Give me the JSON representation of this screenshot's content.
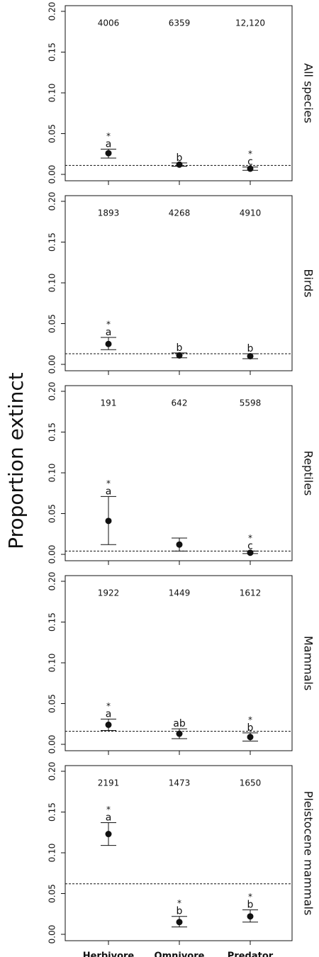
{
  "ylabel": "Proportion extinct",
  "chart_data": [
    {
      "type": "errorbar",
      "title": "All species",
      "ylim": [
        0,
        0.2
      ],
      "yticks": [
        {
          "value": 0,
          "label": "0.00"
        },
        {
          "value": 0.05,
          "label": "0.05"
        },
        {
          "value": 0.1,
          "label": "0.10"
        },
        {
          "value": 0.15,
          "label": "0.15"
        },
        {
          "value": 0.2,
          "label": "0.20"
        }
      ],
      "values": [
        0.026,
        0.012,
        0.007
      ],
      "error_low": [
        0.02,
        0.01,
        0.005
      ],
      "error_high": [
        0.031,
        0.014,
        0.009
      ],
      "counts": [
        4006,
        6359,
        {
          "value": 12120,
          "label": "12,120"
        }
      ],
      "letters": [
        "a",
        "b",
        "c"
      ],
      "stars": [
        "*",
        null,
        "*"
      ],
      "baseline": 0.011
    },
    {
      "type": "errorbar",
      "title": "Birds",
      "ylim": [
        0,
        0.2
      ],
      "yticks": [
        {
          "value": 0,
          "label": "0.00"
        },
        {
          "value": 0.05,
          "label": "0.05"
        },
        {
          "value": 0.1,
          "label": "0.10"
        },
        {
          "value": 0.15,
          "label": "0.15"
        },
        {
          "value": 0.2,
          "label": "0.20"
        }
      ],
      "values": [
        0.025,
        0.011,
        0.01
      ],
      "error_low": [
        0.018,
        0.008,
        0.007
      ],
      "error_high": [
        0.033,
        0.014,
        0.013
      ],
      "counts": [
        1893,
        4268,
        4910
      ],
      "letters": [
        "a",
        "b",
        "b"
      ],
      "stars": [
        "*",
        null,
        null
      ],
      "baseline": 0.013
    },
    {
      "type": "errorbar",
      "title": "Reptiles",
      "ylim": [
        0,
        0.2
      ],
      "yticks": [
        {
          "value": 0,
          "label": "0.00"
        },
        {
          "value": 0.05,
          "label": "0.05"
        },
        {
          "value": 0.1,
          "label": "0.10"
        },
        {
          "value": 0.15,
          "label": "0.15"
        },
        {
          "value": 0.2,
          "label": "0.20"
        }
      ],
      "values": [
        0.041,
        0.012,
        0.002
      ],
      "error_low": [
        0.012,
        0.004,
        0.001
      ],
      "error_high": [
        0.071,
        0.02,
        0.004
      ],
      "counts": [
        191,
        642,
        5598
      ],
      "letters": [
        "a",
        null,
        "c"
      ],
      "stars": [
        "*",
        null,
        "*"
      ],
      "baseline": 0.004
    },
    {
      "type": "errorbar",
      "title": "Mammals",
      "ylim": [
        0,
        0.2
      ],
      "yticks": [
        {
          "value": 0,
          "label": "0.00"
        },
        {
          "value": 0.05,
          "label": "0.05"
        },
        {
          "value": 0.1,
          "label": "0.10"
        },
        {
          "value": 0.15,
          "label": "0.15"
        },
        {
          "value": 0.2,
          "label": "0.20"
        }
      ],
      "values": [
        0.024,
        0.013,
        0.009
      ],
      "error_low": [
        0.017,
        0.007,
        0.004
      ],
      "error_high": [
        0.031,
        0.019,
        0.014
      ],
      "counts": [
        1922,
        1449,
        1612
      ],
      "letters": [
        "a",
        "ab",
        "b"
      ],
      "stars": [
        "*",
        null,
        "*"
      ],
      "baseline": 0.016
    },
    {
      "type": "errorbar",
      "title": "Pleistocene mammals",
      "ylim": [
        0,
        0.2
      ],
      "yticks": [
        {
          "value": 0,
          "label": "0.00"
        },
        {
          "value": 0.05,
          "label": "0.05"
        },
        {
          "value": 0.1,
          "label": "0.10"
        },
        {
          "value": 0.15,
          "label": "0.15"
        },
        {
          "value": 0.2,
          "label": "0.20"
        }
      ],
      "categories": [
        "Herbivore",
        "Omnivore",
        "Predator"
      ],
      "values": [
        0.123,
        0.015,
        0.022
      ],
      "error_low": [
        0.109,
        0.009,
        0.015
      ],
      "error_high": [
        0.137,
        0.022,
        0.03
      ],
      "counts": [
        2191,
        1473,
        1650
      ],
      "letters": [
        "a",
        "b",
        "b"
      ],
      "stars": [
        "*",
        "*",
        "*"
      ],
      "baseline": 0.062
    }
  ]
}
